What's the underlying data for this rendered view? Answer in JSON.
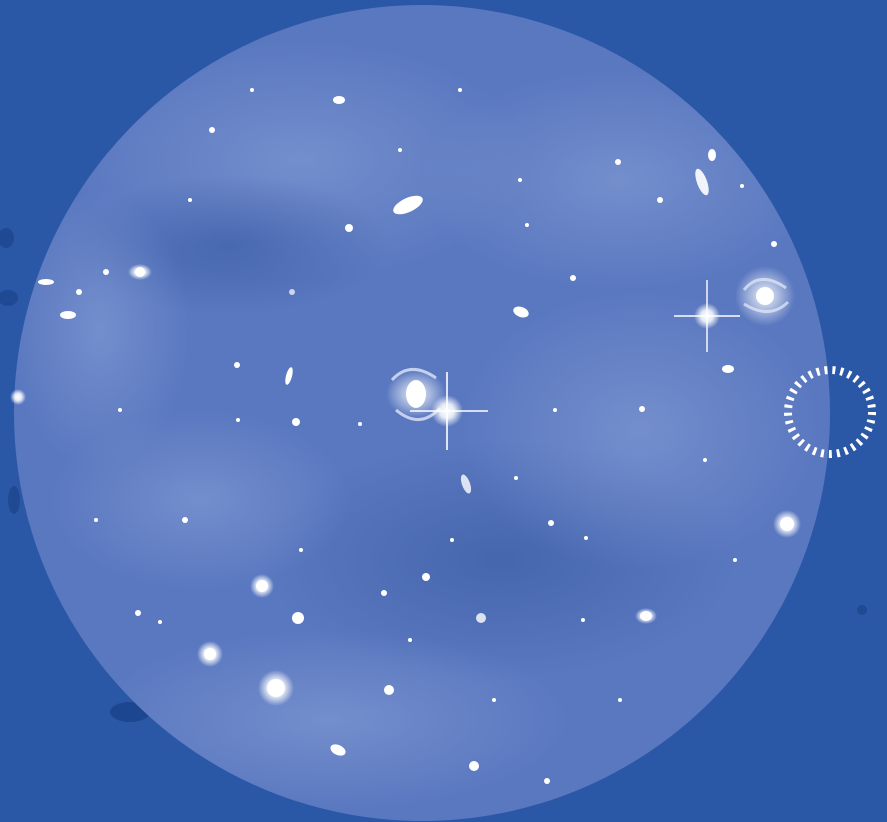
{
  "scene": {
    "kind": "telescope deep-field view",
    "colors": {
      "background": "#2a58a6",
      "field": "#5a78c0",
      "field_dark": "#3f5fb0",
      "field_light": "#7d95cf",
      "star": "#ffffff",
      "reticle": "#ffffff"
    },
    "icons": [
      "field-of-view-disk",
      "dashed-target-reticle-icon"
    ],
    "sources": [
      {
        "name": "spiral-galaxy-center",
        "type": "spiral"
      },
      {
        "name": "bright-star-center",
        "type": "star"
      },
      {
        "name": "spiral-galaxy-right",
        "type": "spiral"
      },
      {
        "name": "bright-star-right",
        "type": "star"
      }
    ]
  }
}
